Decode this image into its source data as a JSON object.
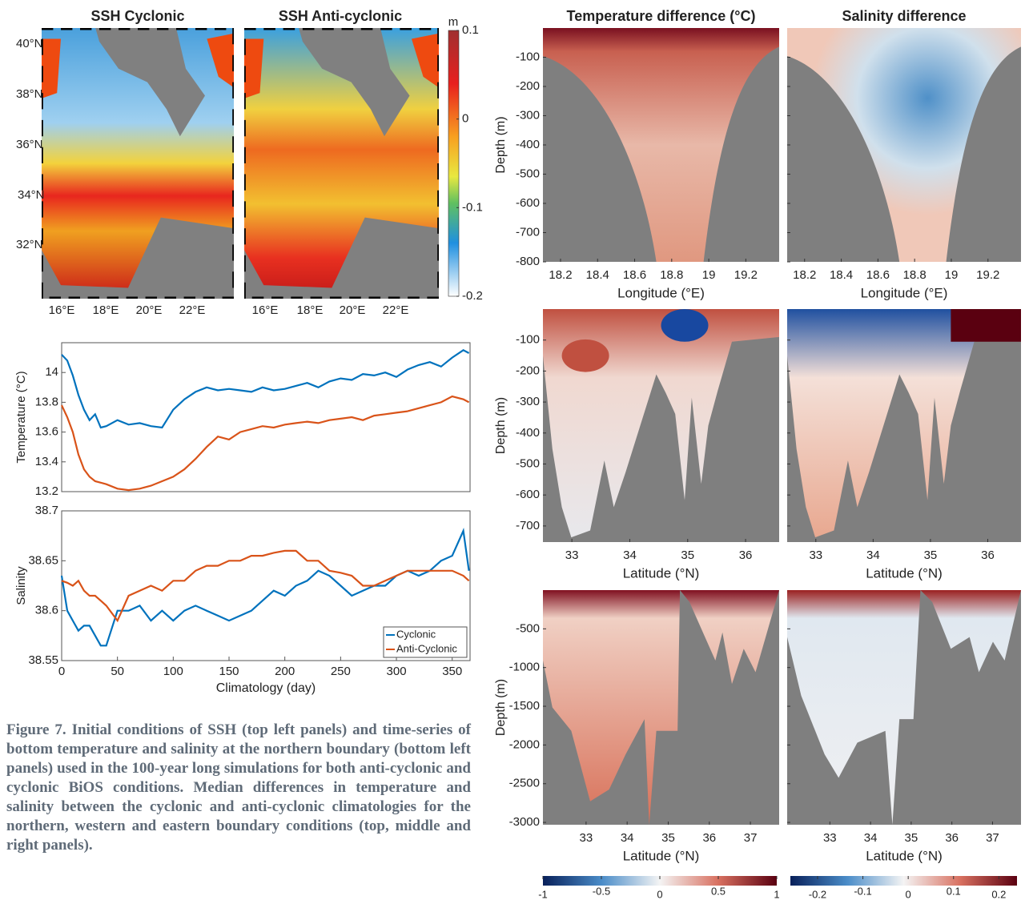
{
  "maps": {
    "titles": [
      "SSH Cyclonic",
      "SSH Anti-cyclonic"
    ],
    "lat_labels": [
      "40°N",
      "38°N",
      "36°N",
      "34°N",
      "32°N"
    ],
    "lon_labels": [
      "16°E",
      "18°E",
      "20°E",
      "22°E"
    ],
    "colorbar": {
      "unit": "m",
      "lim": [
        -0.2,
        0.1
      ],
      "ticks": [
        0.1,
        0,
        -0.1,
        -0.2
      ]
    }
  },
  "chart_data": [
    {
      "type": "line",
      "ylabel": "Temperature (°C)",
      "x": [
        0,
        5,
        10,
        15,
        20,
        25,
        30,
        35,
        40,
        50,
        60,
        70,
        80,
        90,
        100,
        110,
        120,
        130,
        140,
        150,
        160,
        170,
        180,
        190,
        200,
        210,
        220,
        230,
        240,
        250,
        260,
        270,
        280,
        290,
        300,
        310,
        320,
        330,
        340,
        350,
        360,
        365
      ],
      "series": [
        {
          "name": "Cyclonic",
          "color": "#0072bd",
          "values": [
            14.12,
            14.08,
            13.98,
            13.85,
            13.75,
            13.68,
            13.72,
            13.63,
            13.64,
            13.68,
            13.65,
            13.66,
            13.64,
            13.63,
            13.75,
            13.82,
            13.87,
            13.9,
            13.88,
            13.89,
            13.88,
            13.87,
            13.9,
            13.88,
            13.89,
            13.91,
            13.93,
            13.9,
            13.94,
            13.96,
            13.95,
            13.99,
            13.98,
            14.0,
            13.97,
            14.02,
            14.05,
            14.07,
            14.04,
            14.1,
            14.15,
            14.13
          ]
        },
        {
          "name": "Anti-Cyclonic",
          "color": "#d95319",
          "values": [
            13.78,
            13.7,
            13.6,
            13.45,
            13.35,
            13.3,
            13.27,
            13.26,
            13.25,
            13.22,
            13.21,
            13.22,
            13.24,
            13.27,
            13.3,
            13.35,
            13.42,
            13.5,
            13.57,
            13.55,
            13.6,
            13.62,
            13.64,
            13.63,
            13.65,
            13.66,
            13.67,
            13.66,
            13.68,
            13.69,
            13.7,
            13.68,
            13.71,
            13.72,
            13.73,
            13.74,
            13.76,
            13.78,
            13.8,
            13.84,
            13.82,
            13.8
          ]
        }
      ],
      "xlim": [
        0,
        366
      ],
      "ylim": [
        13.2,
        14.2
      ],
      "yticks": [
        13.2,
        13.4,
        13.6,
        13.8,
        14
      ]
    },
    {
      "type": "line",
      "ylabel": "Salinity",
      "xlabel": "Climatology (day)",
      "x": [
        0,
        5,
        10,
        15,
        20,
        25,
        30,
        35,
        40,
        50,
        60,
        70,
        80,
        90,
        100,
        110,
        120,
        130,
        140,
        150,
        160,
        170,
        180,
        190,
        200,
        210,
        220,
        230,
        240,
        250,
        260,
        270,
        280,
        290,
        300,
        310,
        320,
        330,
        340,
        350,
        360,
        365
      ],
      "series": [
        {
          "name": "Cyclonic",
          "color": "#0072bd",
          "values": [
            38.635,
            38.6,
            38.59,
            38.58,
            38.585,
            38.585,
            38.575,
            38.565,
            38.565,
            38.6,
            38.6,
            38.605,
            38.59,
            38.6,
            38.59,
            38.6,
            38.605,
            38.6,
            38.595,
            38.59,
            38.595,
            38.6,
            38.61,
            38.62,
            38.615,
            38.625,
            38.63,
            38.64,
            38.635,
            38.625,
            38.615,
            38.62,
            38.625,
            38.625,
            38.635,
            38.64,
            38.635,
            38.64,
            38.65,
            38.655,
            38.68,
            38.64
          ]
        },
        {
          "name": "Anti-Cyclonic",
          "color": "#d95319",
          "values": [
            38.63,
            38.628,
            38.625,
            38.63,
            38.62,
            38.615,
            38.615,
            38.61,
            38.605,
            38.59,
            38.615,
            38.62,
            38.625,
            38.62,
            38.63,
            38.63,
            38.64,
            38.645,
            38.645,
            38.65,
            38.65,
            38.655,
            38.655,
            38.658,
            38.66,
            38.66,
            38.65,
            38.65,
            38.64,
            38.638,
            38.635,
            38.625,
            38.625,
            38.63,
            38.635,
            38.64,
            38.64,
            38.64,
            38.64,
            38.64,
            38.635,
            38.63
          ]
        }
      ],
      "xlim": [
        0,
        366
      ],
      "ylim": [
        38.55,
        38.7
      ],
      "xticks": [
        0,
        50,
        100,
        150,
        200,
        250,
        300,
        350
      ],
      "yticks": [
        38.55,
        38.6,
        38.65,
        38.7
      ],
      "legend": "lower right"
    }
  ],
  "sections": {
    "titles": [
      "Temperature difference (°C)",
      "Salinity difference"
    ],
    "ylabel": "Depth (m)",
    "rows": [
      {
        "xlabel": "Longitude (°E)",
        "xlim": [
          18.105,
          19.38
        ],
        "xticks": [
          18.2,
          18.4,
          18.6,
          18.8,
          19,
          19.2
        ],
        "ylim": [
          -800,
          0
        ],
        "yticks": [
          -100,
          -200,
          -300,
          -400,
          -500,
          -600,
          -700,
          -800
        ]
      },
      {
        "xlabel": "Latitude (°N)",
        "xlim": [
          32.5,
          36.58
        ],
        "xticks": [
          33,
          34,
          35,
          36
        ],
        "ylim": [
          -752,
          0
        ],
        "yticks": [
          -100,
          -200,
          -300,
          -400,
          -500,
          -600,
          -700
        ]
      },
      {
        "xlabel": "Latitude (°N)",
        "xlim": [
          31.95,
          37.7
        ],
        "xticks": [
          33,
          34,
          35,
          36,
          37
        ],
        "ylim": [
          -3030,
          0
        ],
        "yticks": [
          -500,
          -1000,
          -1500,
          -2000,
          -2500,
          -3000
        ]
      }
    ],
    "colorbars": [
      {
        "lim": [
          -1,
          1
        ],
        "ticks": [
          -1,
          -0.5,
          0,
          0.5,
          1
        ]
      },
      {
        "lim": [
          -0.26,
          0.24
        ],
        "ticks": [
          -0.2,
          -0.1,
          0,
          0.1,
          0.2
        ]
      }
    ]
  },
  "caption": "Figure 7. Initial conditions of SSH (top left panels) and time-series of bottom temperature and salinity at the northern boundary (bottom left panels) used in the 100-year long simulations for both anti-cyclonic and cyclonic BiOS conditions. Median differences in temperature and salinity between the cyclonic and anti-cyclonic climatologies for the northern, western and eastern boundary conditions (top, middle and right panels)."
}
